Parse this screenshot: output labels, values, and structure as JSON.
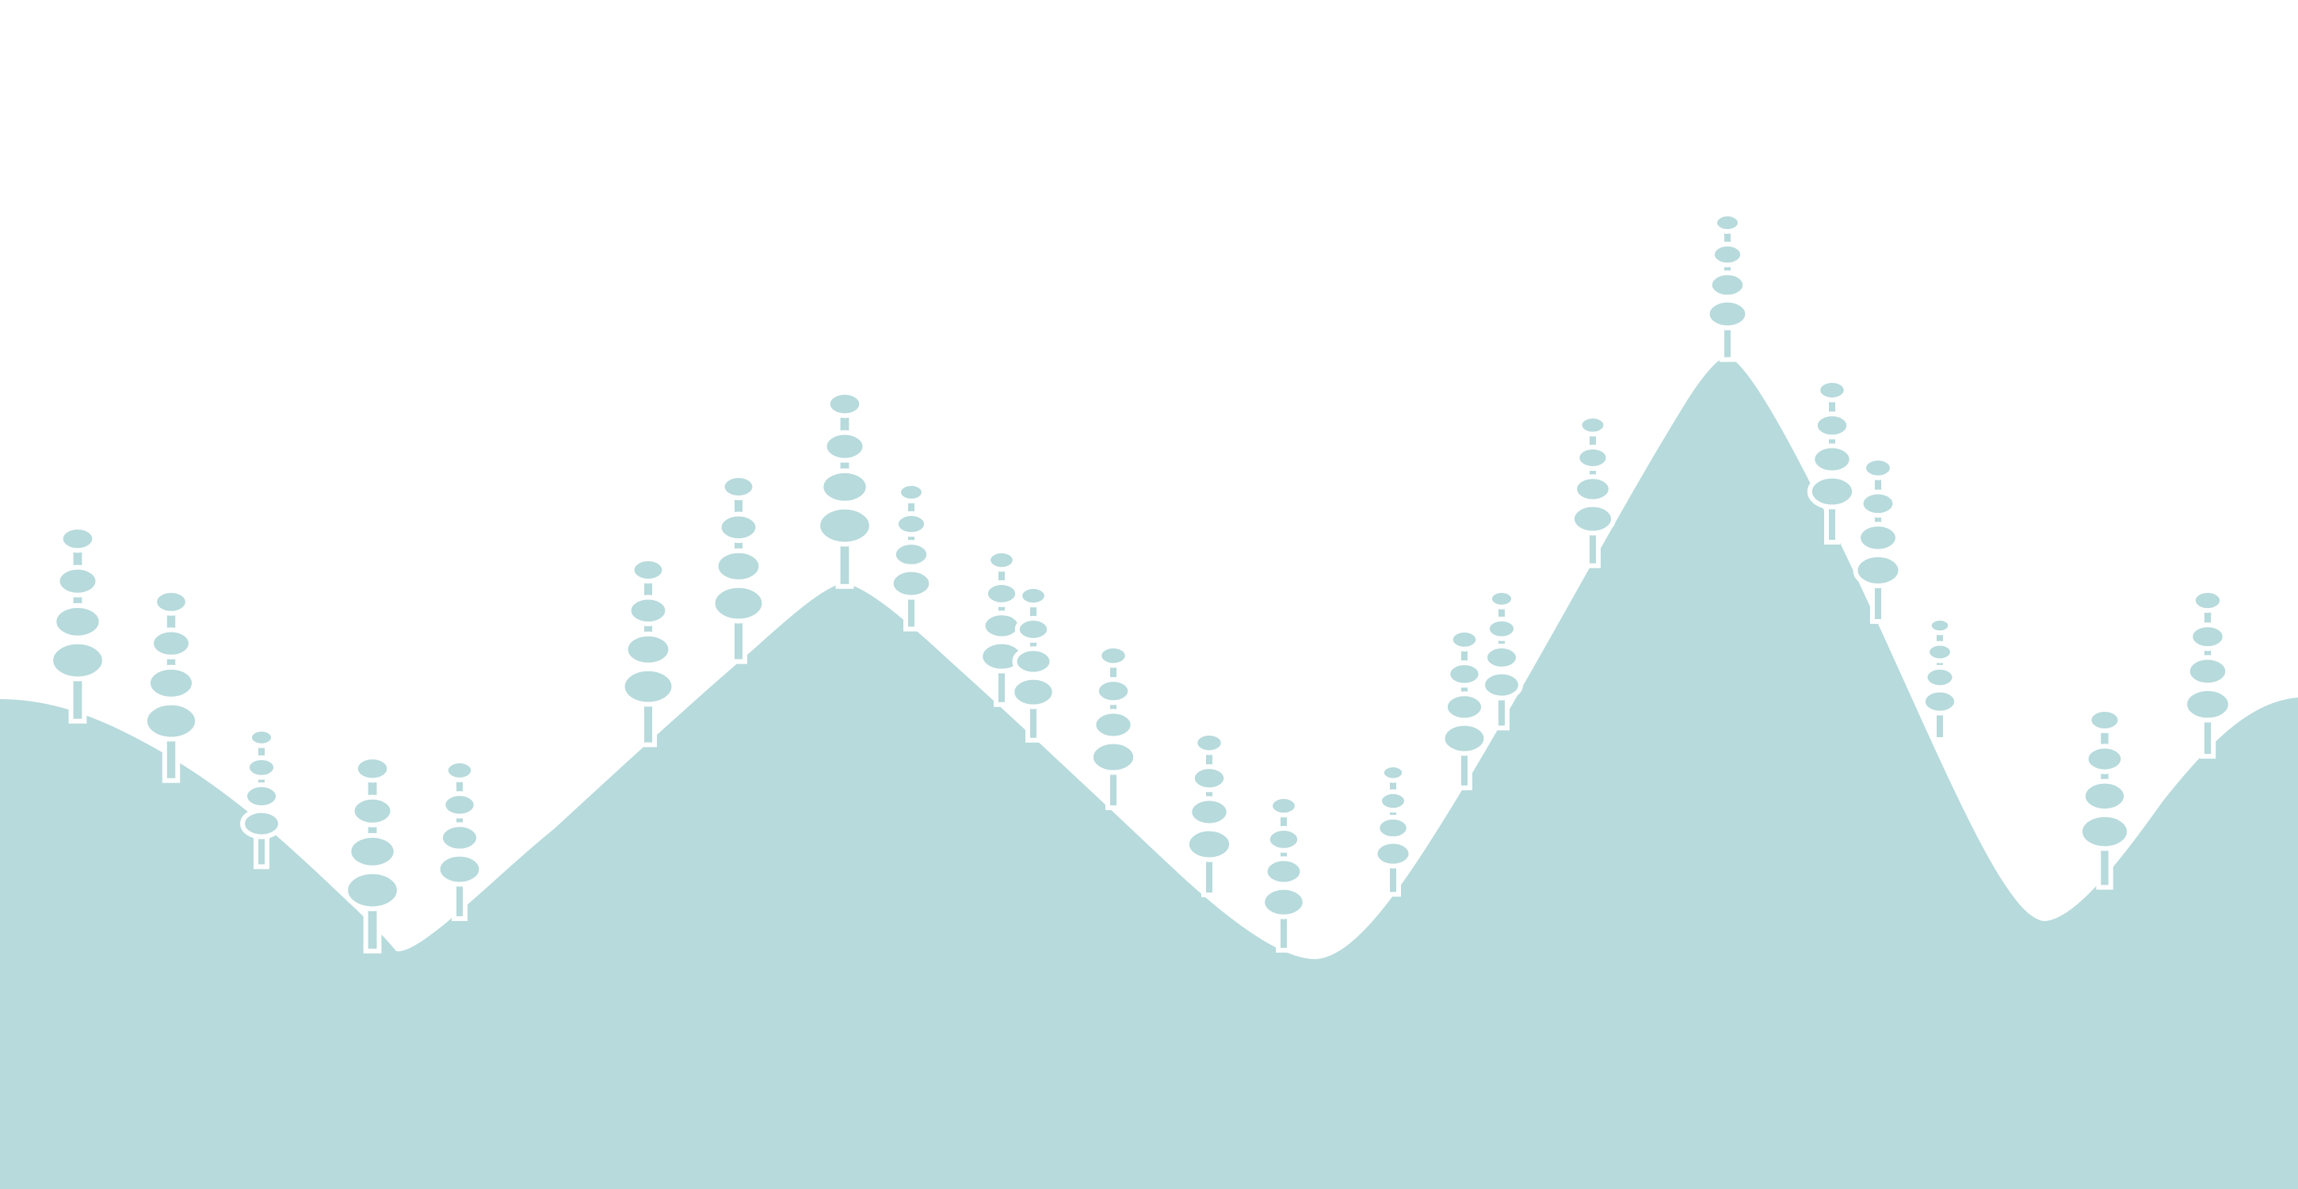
{
  "colors": {
    "background": "#ffffff",
    "landscape": "#b7dadc",
    "gap": "#ffffff"
  },
  "illustration": {
    "kind": "decorative hills with stylized trees",
    "tree_count": 25,
    "tree_shape": "trunk with stacked ellipse tiers"
  }
}
